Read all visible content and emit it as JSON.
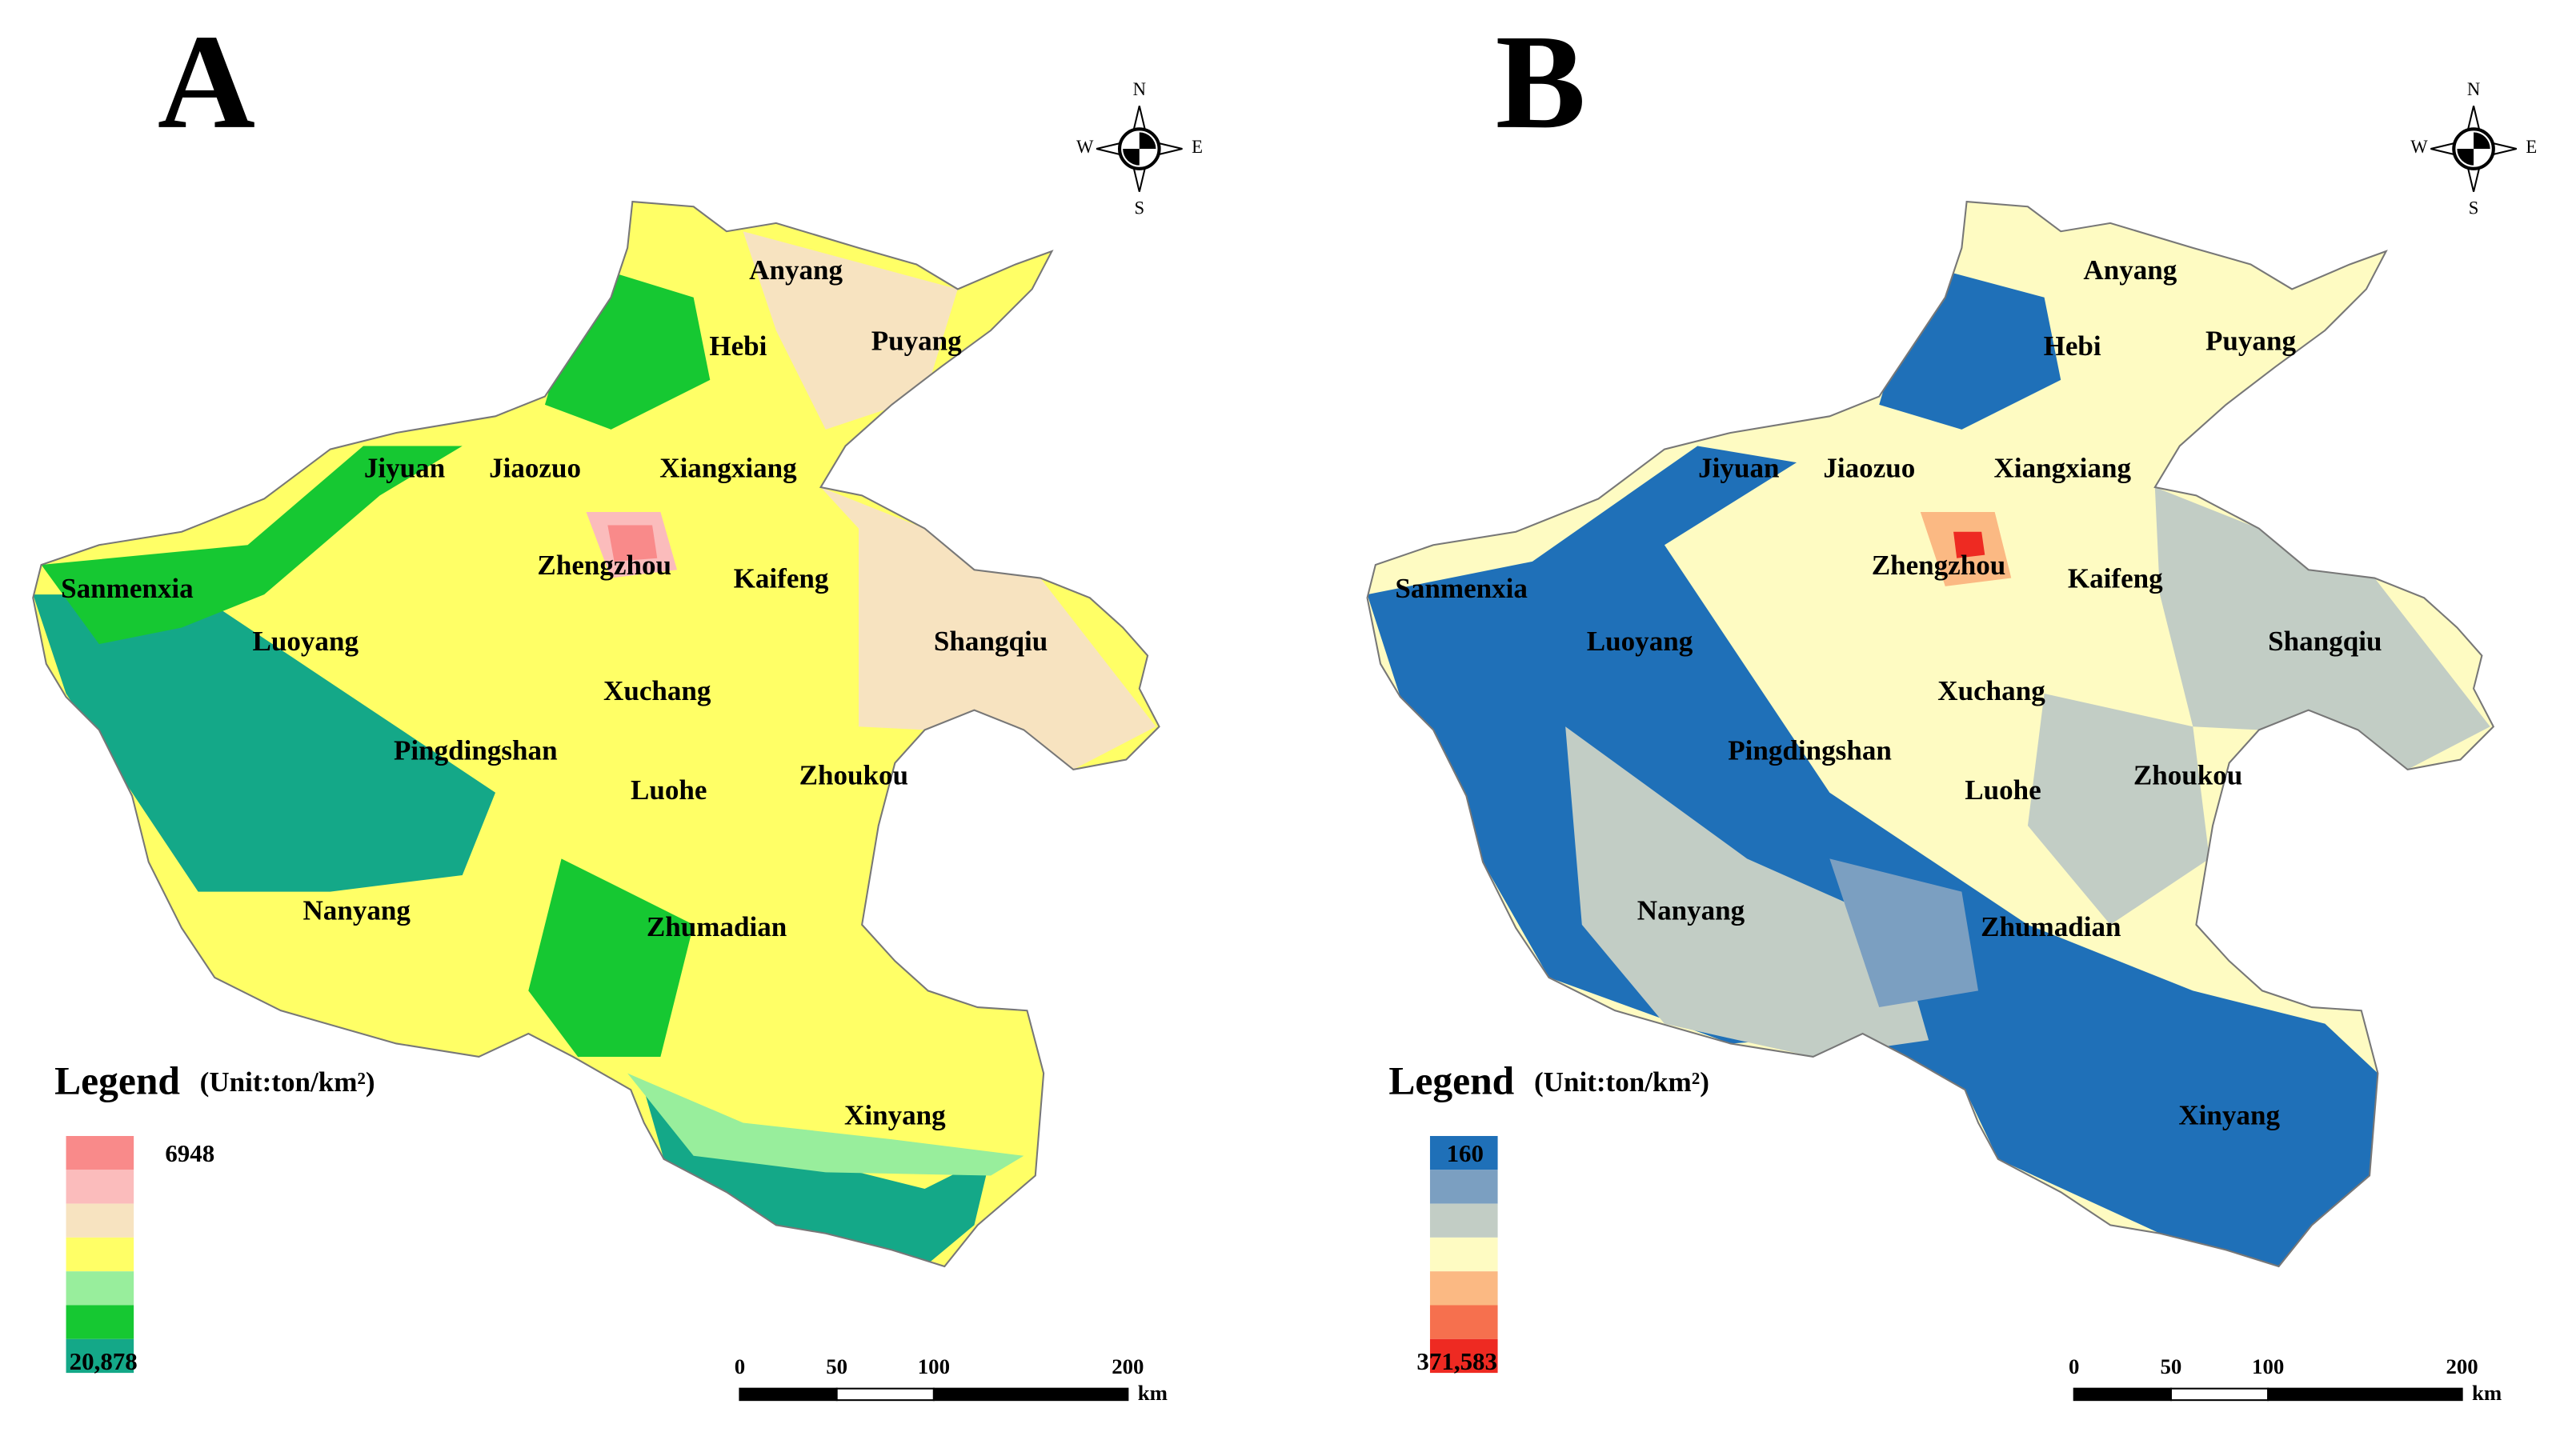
{
  "panels": [
    {
      "label": "A",
      "legend": {
        "title": "Legend",
        "unit": "(Unit:ton/km²)",
        "top_label": "6948",
        "bottom_label": "20,878",
        "colors": [
          "#f98a8a",
          "#fbbcbc",
          "#f7e3c0",
          "#ffff66",
          "#98ee9c",
          "#16c832",
          "#14a888"
        ]
      }
    },
    {
      "label": "B",
      "legend": {
        "title": "Legend",
        "unit": "(Unit:ton/km²)",
        "top_label": "160",
        "bottom_label": "371,583",
        "colors": [
          "#1f70b8",
          "#7b9fc1",
          "#c2cdc5",
          "#fefbc2",
          "#fbb983",
          "#f6704e",
          "#ee2a22"
        ]
      }
    }
  ],
  "cities": [
    "Anyang",
    "Hebi",
    "Puyang",
    "Jiyuan",
    "Jiaozuo",
    "Xiangxiang",
    "Zhengzhou",
    "Kaifeng",
    "Sanmenxia",
    "Luoyang",
    "Shangqiu",
    "Xuchang",
    "Pingdingshan",
    "Luohe",
    "Zhoukou",
    "Nanyang",
    "Zhumadian",
    "Xinyang"
  ],
  "compass": {
    "north": "N",
    "south": "S",
    "east": "E",
    "west": "W"
  },
  "scale_bar": {
    "ticks": [
      0,
      50,
      100,
      200
    ],
    "unit": "km"
  }
}
